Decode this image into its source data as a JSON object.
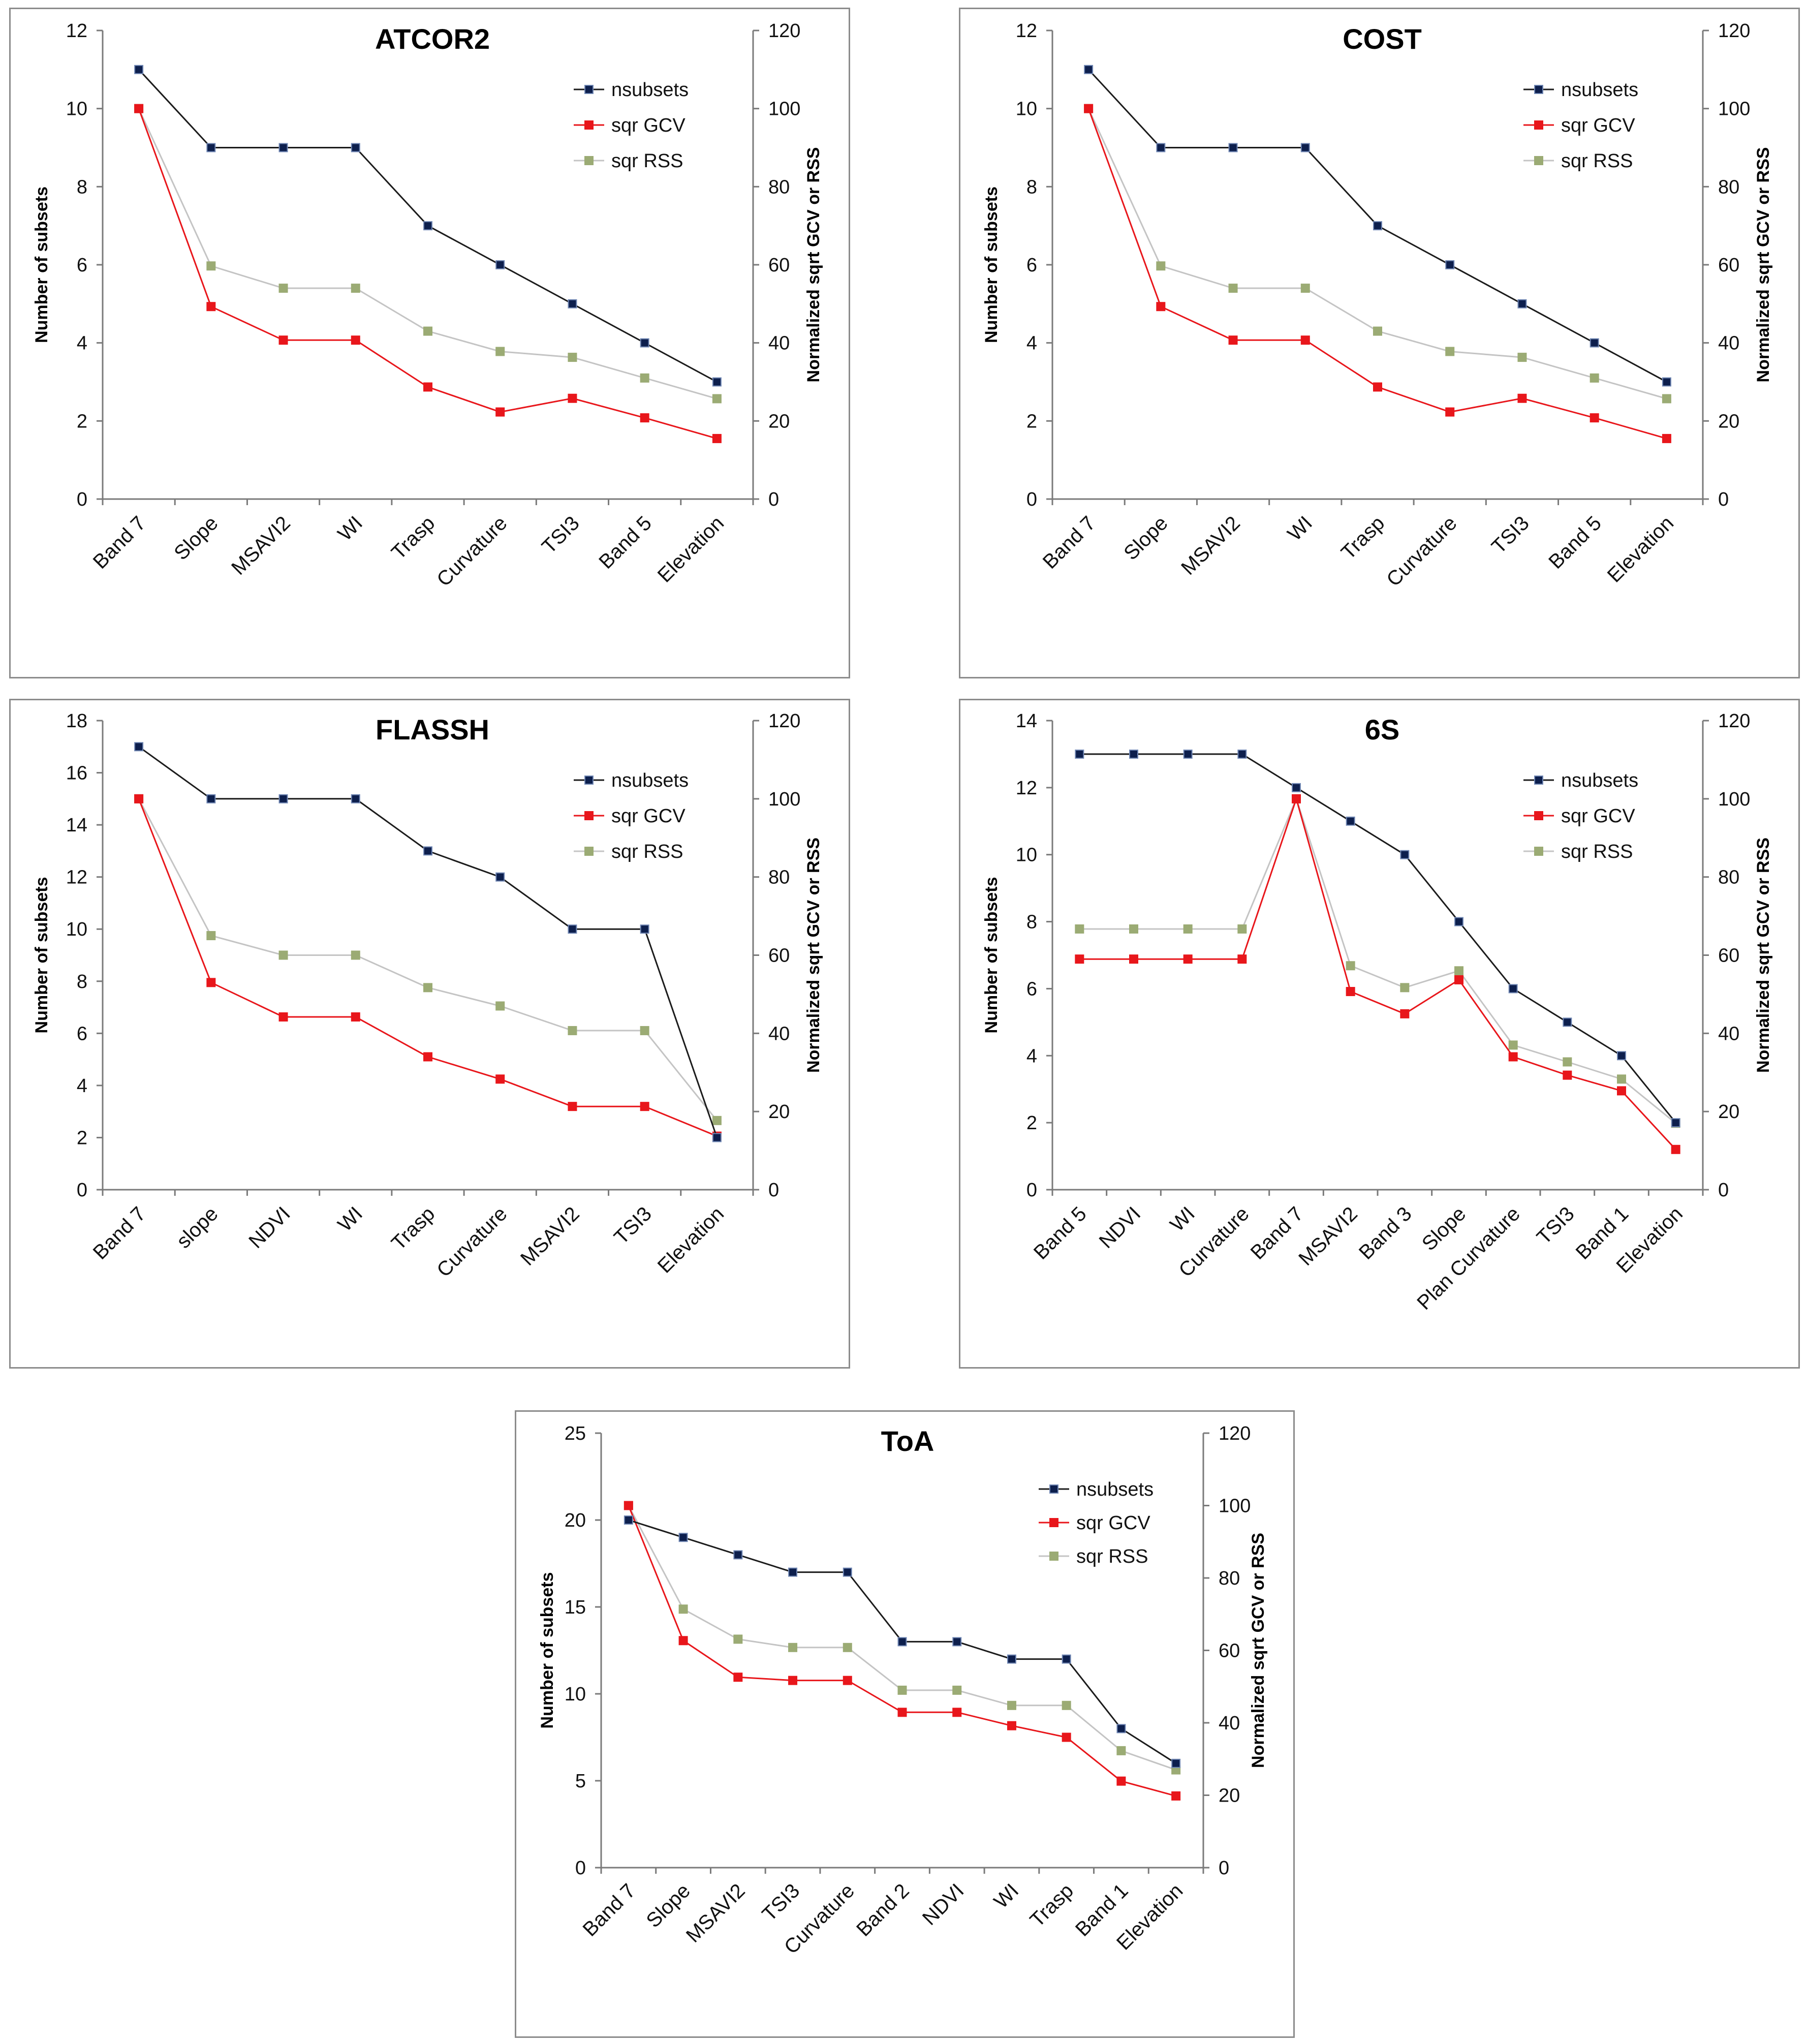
{
  "colors": {
    "nsubsets_line": "#1b1b1b",
    "nsubsets_marker": "#0d1f4d",
    "sqr_gcv": "#e8161b",
    "sqr_rss_marker": "#9bab74",
    "sqr_rss_line": "#c4c4c4",
    "frame": "#8c8c8c"
  },
  "chart_data": [
    {
      "type": "line",
      "title": "ATCOR2",
      "ylabel": "Number of subsets",
      "y2label": "Normalized sqrt GCV or RSS",
      "ylim": [
        0,
        12
      ],
      "yticks": [
        0,
        2,
        4,
        6,
        8,
        10,
        12
      ],
      "y2lim": [
        0,
        120
      ],
      "y2ticks": [
        0,
        20,
        40,
        60,
        80,
        100,
        120
      ],
      "legend_position": "top-right",
      "categories": [
        "Band 7",
        "Slope",
        "MSAVI2",
        "WI",
        "Trasp",
        "Curvature",
        "TSI3",
        "Band 5",
        "Elevation"
      ],
      "series": [
        {
          "name": "nsubsets",
          "axis": "left",
          "values": [
            11,
            9,
            9,
            9,
            7,
            6,
            5,
            4,
            3
          ]
        },
        {
          "name": "sqr GCV",
          "axis": "right",
          "values": [
            100,
            49.3,
            40.7,
            40.7,
            28.7,
            22.3,
            25.8,
            20.8,
            15.5
          ]
        },
        {
          "name": "sqr RSS",
          "axis": "right",
          "values": [
            100,
            59.7,
            54.0,
            54.0,
            43.0,
            37.8,
            36.3,
            31.0,
            25.7
          ]
        }
      ]
    },
    {
      "type": "line",
      "title": "COST",
      "ylabel": "Number of subsets",
      "y2label": "Normalized sqrt GCV or RSS",
      "ylim": [
        0,
        12
      ],
      "yticks": [
        0,
        2,
        4,
        6,
        8,
        10,
        12
      ],
      "y2lim": [
        0,
        120
      ],
      "y2ticks": [
        0,
        20,
        40,
        60,
        80,
        100,
        120
      ],
      "legend_position": "top-right",
      "categories": [
        "Band 7",
        "Slope",
        "MSAVI2",
        "WI",
        "Trasp",
        "Curvature",
        "TSI3",
        "Band 5",
        "Elevation"
      ],
      "series": [
        {
          "name": "nsubsets",
          "axis": "left",
          "values": [
            11,
            9,
            9,
            9,
            7,
            6,
            5,
            4,
            3
          ]
        },
        {
          "name": "sqr GCV",
          "axis": "right",
          "values": [
            100,
            49.3,
            40.7,
            40.7,
            28.7,
            22.3,
            25.8,
            20.8,
            15.5
          ]
        },
        {
          "name": "sqr RSS",
          "axis": "right",
          "values": [
            100,
            59.7,
            54.0,
            54.0,
            43.0,
            37.8,
            36.3,
            31.0,
            25.7
          ]
        }
      ]
    },
    {
      "type": "line",
      "title": "FLASSH",
      "ylabel": "Number of subsets",
      "y2label": "Normalized sqrt GCV or RSS",
      "ylim": [
        0,
        18
      ],
      "yticks": [
        0,
        2,
        4,
        6,
        8,
        10,
        12,
        14,
        16,
        18
      ],
      "y2lim": [
        0,
        120
      ],
      "y2ticks": [
        0,
        20,
        40,
        60,
        80,
        100,
        120
      ],
      "legend_position": "top-right",
      "categories": [
        "Band 7",
        "slope",
        "NDVI",
        "WI",
        "Trasp",
        "Curvature",
        "MSAVI2",
        "TSI3",
        "Elevation"
      ],
      "series": [
        {
          "name": "nsubsets",
          "axis": "left",
          "values": [
            17,
            15,
            15,
            15,
            13,
            12,
            10,
            10,
            2
          ]
        },
        {
          "name": "sqr GCV",
          "axis": "right",
          "values": [
            100,
            53.0,
            44.2,
            44.2,
            34.0,
            28.3,
            21.3,
            21.3,
            13.7
          ]
        },
        {
          "name": "sqr RSS",
          "axis": "right",
          "values": [
            100,
            65.0,
            60.0,
            60.0,
            51.7,
            47.0,
            40.7,
            40.7,
            17.7
          ]
        }
      ]
    },
    {
      "type": "line",
      "title": "6S",
      "ylabel": "Number of subsets",
      "y2label": "Normalized sqrt GCV or RSS",
      "ylim": [
        0,
        14
      ],
      "yticks": [
        0,
        2,
        4,
        6,
        8,
        10,
        12,
        14
      ],
      "y2lim": [
        0,
        120
      ],
      "y2ticks": [
        0,
        20,
        40,
        60,
        80,
        100,
        120
      ],
      "legend_position": "top-right",
      "categories": [
        "Band 5",
        "NDVI",
        "WI",
        "Curvature",
        "Band 7",
        "MSAVI2",
        "Band 3",
        "Slope",
        "Plan Curvature",
        "TSI3",
        "Band 1",
        "Elevation"
      ],
      "series": [
        {
          "name": "nsubsets",
          "axis": "left",
          "values": [
            13,
            13,
            13,
            13,
            12,
            11,
            10,
            8,
            6,
            5,
            4,
            2
          ]
        },
        {
          "name": "sqr GCV",
          "axis": "right",
          "values": [
            59,
            59,
            59,
            59,
            100,
            50.7,
            45.0,
            53.7,
            34.0,
            29.3,
            25.3,
            10.3
          ]
        },
        {
          "name": "sqr RSS",
          "axis": "right",
          "values": [
            66.7,
            66.7,
            66.7,
            66.7,
            100,
            57.3,
            51.7,
            56.0,
            37.0,
            32.7,
            28.3,
            17.0
          ]
        }
      ]
    },
    {
      "type": "line",
      "title": "ToA",
      "ylabel": "Number of subsets",
      "y2label": "Normalized sqrt GCV or RSS",
      "ylim": [
        0,
        25
      ],
      "yticks": [
        0,
        5,
        10,
        15,
        20,
        25
      ],
      "y2lim": [
        0,
        120
      ],
      "y2ticks": [
        0,
        20,
        40,
        60,
        80,
        100,
        120
      ],
      "legend_position": "top-right",
      "categories": [
        "Band 7",
        "Slope",
        "MSAVI2",
        "TSI3",
        "Curvature",
        "Band 2",
        "NDVI",
        "WI",
        "Trasp",
        "Band 1",
        "Elevation"
      ],
      "series": [
        {
          "name": "nsubsets",
          "axis": "left",
          "values": [
            20,
            19,
            18,
            17,
            17,
            13,
            13,
            12,
            12,
            8,
            6
          ]
        },
        {
          "name": "sqr GCV",
          "axis": "right",
          "values": [
            100,
            62.7,
            52.6,
            51.7,
            51.7,
            42.9,
            42.9,
            39.2,
            36.0,
            23.9,
            19.8
          ]
        },
        {
          "name": "sqr RSS",
          "axis": "right",
          "values": [
            100,
            71.4,
            63.1,
            60.8,
            60.8,
            49.0,
            49.0,
            44.8,
            44.8,
            32.3,
            27.0
          ]
        }
      ]
    }
  ]
}
